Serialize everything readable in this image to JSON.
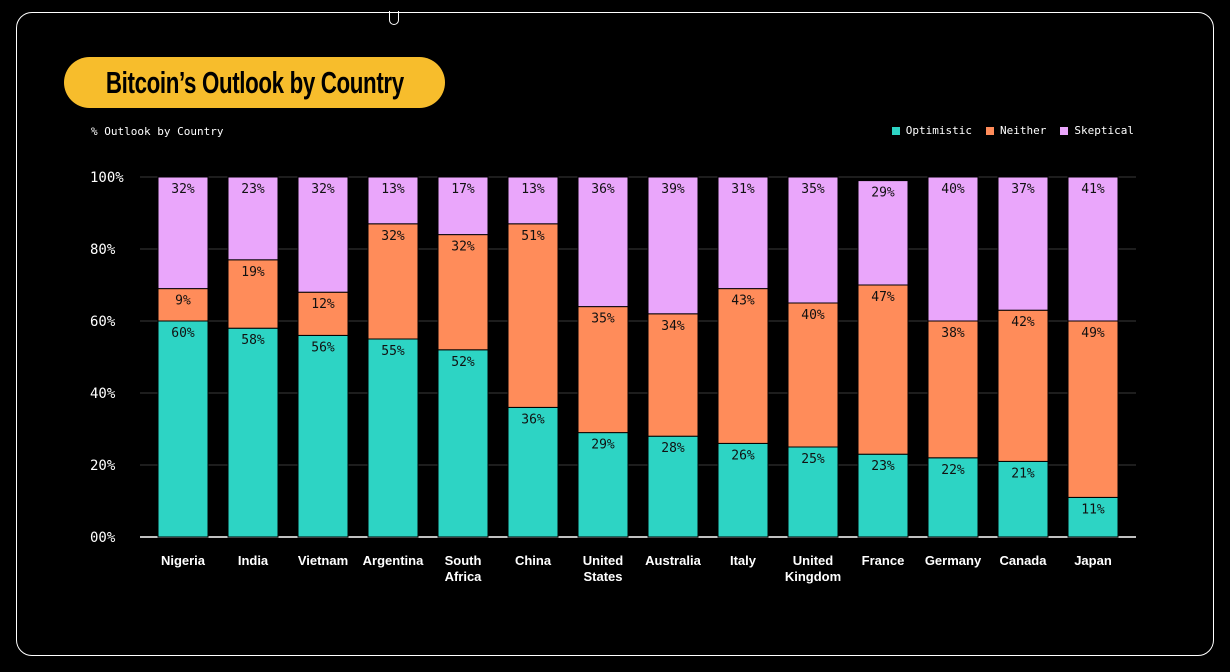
{
  "title": "Bitcoin’s Outlook by Country",
  "subtitle": "% Outlook by Country",
  "colors": {
    "optimistic": "#2dd4c4",
    "neither": "#ff8c5a",
    "skeptical": "#eaa6fb",
    "title_bg": "#f7bd2c"
  },
  "chart_data": {
    "type": "bar",
    "stacked": true,
    "title": "Bitcoin’s Outlook by Country",
    "ylabel": "% Outlook by Country",
    "ylim": [
      0,
      100
    ],
    "yticks": [
      "00%",
      "20%",
      "40%",
      "60%",
      "80%",
      "100%"
    ],
    "legend": [
      "Optimistic",
      "Neither",
      "Skeptical"
    ],
    "categories": [
      [
        "Nigeria"
      ],
      [
        "India"
      ],
      [
        "Vietnam"
      ],
      [
        "Argentina"
      ],
      [
        "South",
        "Africa"
      ],
      [
        "China"
      ],
      [
        "United",
        "States"
      ],
      [
        "Australia"
      ],
      [
        "Italy"
      ],
      [
        "United",
        "Kingdom"
      ],
      [
        "France"
      ],
      [
        "Germany"
      ],
      [
        "Canada"
      ],
      [
        "Japan"
      ]
    ],
    "series": [
      {
        "name": "Optimistic",
        "values": [
          60,
          58,
          56,
          55,
          52,
          36,
          29,
          28,
          26,
          25,
          23,
          22,
          21,
          11
        ]
      },
      {
        "name": "Neither",
        "values": [
          9,
          19,
          12,
          32,
          32,
          51,
          35,
          34,
          43,
          40,
          47,
          38,
          42,
          49
        ]
      },
      {
        "name": "Skeptical",
        "values": [
          32,
          23,
          32,
          13,
          17,
          13,
          36,
          39,
          31,
          35,
          29,
          40,
          37,
          41
        ]
      }
    ]
  }
}
